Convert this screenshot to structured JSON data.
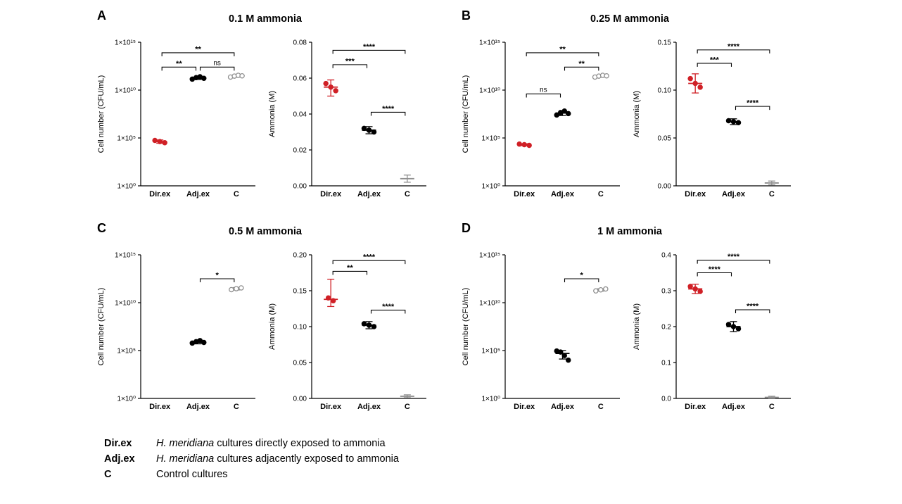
{
  "chart_data": [
    {
      "label": "A",
      "title": "0.1 M ammonia",
      "plots": [
        {
          "type": "scatter",
          "scale": "log10",
          "ylabel": "Cell number (CFU/mL)",
          "ylim_exp": [
            0,
            15
          ],
          "yticks_exp": [
            0,
            5,
            10,
            15
          ],
          "ytick_labels": [
            "1×10⁰",
            "1×10⁵",
            "1×10¹⁰",
            "1×10¹⁵"
          ],
          "categories": [
            "Dir.ex",
            "Adj.ex",
            "C"
          ],
          "groups": [
            {
              "name": "Dir.ex",
              "color": "#d02026",
              "open": false,
              "points": [
                55000.0,
                42000.0,
                32000.0
              ],
              "mean": 42000.0,
              "err_lo": 28000.0,
              "err_hi": 62000.0
            },
            {
              "name": "Adj.ex",
              "color": "#000000",
              "open": false,
              "points": [
                140000000000.0,
                200000000000.0,
                250000000000.0,
                170000000000.0
              ],
              "mean": 190000000000.0,
              "err_lo": 130000000000.0,
              "err_hi": 270000000000.0
            },
            {
              "name": "C",
              "color": "#8f8f8f",
              "open": true,
              "points": [
                230000000000.0,
                290000000000.0,
                350000000000.0,
                310000000000.0
              ],
              "mean": 300000000000.0,
              "err_lo": 220000000000.0,
              "err_hi": 390000000000.0
            }
          ],
          "brackets": [
            {
              "from": 0,
              "to": 2,
              "label": "**",
              "y": 13.9
            },
            {
              "from": 0,
              "to": 1,
              "label": "**",
              "y": 12.4
            },
            {
              "from": 1,
              "to": 2,
              "label": "ns",
              "y": 12.4
            }
          ]
        },
        {
          "type": "scatter",
          "scale": "linear",
          "ylabel": "Ammonia (M)",
          "ylim": [
            0,
            0.08
          ],
          "yticks": [
            0,
            0.02,
            0.04,
            0.06,
            0.08
          ],
          "ytick_labels": [
            "0.00",
            "0.02",
            "0.04",
            "0.06",
            "0.08"
          ],
          "categories": [
            "Dir.ex",
            "Adj.ex",
            "C"
          ],
          "groups": [
            {
              "name": "Dir.ex",
              "color": "#d02026",
              "open": false,
              "points": [
                0.057,
                0.055,
                0.053
              ],
              "mean": 0.055,
              "err_lo": 0.05,
              "err_hi": 0.059
            },
            {
              "name": "Adj.ex",
              "color": "#000000",
              "open": false,
              "points": [
                0.032,
                0.031,
                0.03
              ],
              "mean": 0.031,
              "err_lo": 0.029,
              "err_hi": 0.033
            },
            {
              "name": "C",
              "color": "#8f8f8f",
              "open": true,
              "points": [],
              "mean": 0.004,
              "err_lo": 0.002,
              "err_hi": 0.006
            }
          ],
          "brackets": [
            {
              "from": 0,
              "to": 2,
              "label": "****",
              "y": 0.0755
            },
            {
              "from": 0,
              "to": 1,
              "label": "***",
              "y": 0.0675
            },
            {
              "from": 1,
              "to": 2,
              "label": "****",
              "y": 0.041
            }
          ]
        }
      ]
    },
    {
      "label": "B",
      "title": "0.25 M ammonia",
      "plots": [
        {
          "type": "scatter",
          "scale": "log10",
          "ylabel": "Cell number (CFU/mL)",
          "ylim_exp": [
            0,
            15
          ],
          "yticks_exp": [
            0,
            5,
            10,
            15
          ],
          "ytick_labels": [
            "1×10⁰",
            "1×10⁵",
            "1×10¹⁰",
            "1×10¹⁵"
          ],
          "categories": [
            "Dir.ex",
            "Adj.ex",
            "C"
          ],
          "groups": [
            {
              "name": "Dir.ex",
              "color": "#d02026",
              "open": false,
              "points": [
                23000.0,
                20000.0,
                17000.0
              ],
              "mean": 20000.0,
              "err_lo": 16000.0,
              "err_hi": 25000.0
            },
            {
              "name": "Adj.ex",
              "color": "#000000",
              "open": false,
              "points": [
                25000000.0,
                45000000.0,
                65000000.0,
                35000000.0
              ],
              "mean": 40000000.0,
              "err_lo": 22000000.0,
              "err_hi": 70000000.0
            },
            {
              "name": "C",
              "color": "#8f8f8f",
              "open": true,
              "points": [
                230000000000.0,
                290000000000.0,
                350000000000.0,
                310000000000.0
              ],
              "mean": 300000000000.0,
              "err_lo": 220000000000.0,
              "err_hi": 390000000000.0
            }
          ],
          "brackets": [
            {
              "from": 0,
              "to": 2,
              "label": "**",
              "y": 13.9
            },
            {
              "from": 1,
              "to": 2,
              "label": "**",
              "y": 12.4
            },
            {
              "from": 0,
              "to": 1,
              "label": "ns",
              "y": 9.6
            }
          ]
        },
        {
          "type": "scatter",
          "scale": "linear",
          "ylabel": "Ammonia (M)",
          "ylim": [
            0,
            0.15
          ],
          "yticks": [
            0,
            0.05,
            0.1,
            0.15
          ],
          "ytick_labels": [
            "0.00",
            "0.05",
            "0.10",
            "0.15"
          ],
          "categories": [
            "Dir.ex",
            "Adj.ex",
            "C"
          ],
          "groups": [
            {
              "name": "Dir.ex",
              "color": "#d02026",
              "open": false,
              "points": [
                0.112,
                0.107,
                0.103
              ],
              "mean": 0.107,
              "err_lo": 0.097,
              "err_hi": 0.117
            },
            {
              "name": "Adj.ex",
              "color": "#000000",
              "open": false,
              "points": [
                0.068,
                0.067,
                0.066
              ],
              "mean": 0.067,
              "err_lo": 0.064,
              "err_hi": 0.07
            },
            {
              "name": "C",
              "color": "#8f8f8f",
              "open": true,
              "points": [],
              "mean": 0.003,
              "err_lo": 0.001,
              "err_hi": 0.005
            }
          ],
          "brackets": [
            {
              "from": 0,
              "to": 2,
              "label": "****",
              "y": 0.142
            },
            {
              "from": 0,
              "to": 1,
              "label": "***",
              "y": 0.128
            },
            {
              "from": 1,
              "to": 2,
              "label": "****",
              "y": 0.083
            }
          ]
        }
      ]
    },
    {
      "label": "C",
      "title": "0.5 M ammonia",
      "plots": [
        {
          "type": "scatter",
          "scale": "log10",
          "ylabel": "Cell number (CFU/mL)",
          "ylim_exp": [
            0,
            15
          ],
          "yticks_exp": [
            0,
            5,
            10,
            15
          ],
          "ytick_labels": [
            "1×10⁰",
            "1×10⁵",
            "1×10¹⁰",
            "1×10¹⁵"
          ],
          "categories": [
            "Dir.ex",
            "Adj.ex",
            "C"
          ],
          "groups": [
            {
              "name": "Dir.ex",
              "color": "#d02026",
              "open": false,
              "points": [],
              "mean": null,
              "err_lo": null,
              "err_hi": null
            },
            {
              "name": "Adj.ex",
              "color": "#000000",
              "open": false,
              "points": [
                600000.0,
                850000.0,
                1100000.0,
                700000.0
              ],
              "mean": 800000.0,
              "err_lo": 500000.0,
              "err_hi": 1300000.0
            },
            {
              "name": "C",
              "color": "#8f8f8f",
              "open": true,
              "points": [
                230000000000.0,
                290000000000.0,
                350000000000.0
              ],
              "mean": 290000000000.0,
              "err_lo": 210000000000.0,
              "err_hi": 380000000000.0
            }
          ],
          "brackets": [
            {
              "from": 1,
              "to": 2,
              "label": "*",
              "y": 12.5
            }
          ]
        },
        {
          "type": "scatter",
          "scale": "linear",
          "ylabel": "Ammonia (M)",
          "ylim": [
            0,
            0.2
          ],
          "yticks": [
            0,
            0.05,
            0.1,
            0.15,
            0.2
          ],
          "ytick_labels": [
            "0.00",
            "0.05",
            "0.10",
            "0.15",
            "0.20"
          ],
          "categories": [
            "Dir.ex",
            "Adj.ex",
            "C"
          ],
          "groups": [
            {
              "name": "Dir.ex",
              "color": "#d02026",
              "open": false,
              "points": [
                0.14,
                0.136
              ],
              "mean": 0.138,
              "err_lo": 0.128,
              "err_hi": 0.166
            },
            {
              "name": "Adj.ex",
              "color": "#000000",
              "open": false,
              "points": [
                0.104,
                0.102,
                0.1
              ],
              "mean": 0.102,
              "err_lo": 0.097,
              "err_hi": 0.107
            },
            {
              "name": "C",
              "color": "#8f8f8f",
              "open": true,
              "points": [],
              "mean": 0.003,
              "err_lo": 0.001,
              "err_hi": 0.005
            }
          ],
          "brackets": [
            {
              "from": 0,
              "to": 2,
              "label": "****",
              "y": 0.192
            },
            {
              "from": 0,
              "to": 1,
              "label": "**",
              "y": 0.177
            },
            {
              "from": 1,
              "to": 2,
              "label": "****",
              "y": 0.123
            }
          ]
        }
      ]
    },
    {
      "label": "D",
      "title": "1 M ammonia",
      "plots": [
        {
          "type": "scatter",
          "scale": "log10",
          "ylabel": "Cell number (CFU/mL)",
          "ylim_exp": [
            0,
            15
          ],
          "yticks_exp": [
            0,
            5,
            10,
            15
          ],
          "ytick_labels": [
            "1×10⁰",
            "1×10⁵",
            "1×10¹⁰",
            "1×10¹⁵"
          ],
          "categories": [
            "Dir.ex",
            "Adj.ex",
            "C"
          ],
          "groups": [
            {
              "name": "Dir.ex",
              "color": "#d02026",
              "open": false,
              "points": [],
              "mean": null,
              "err_lo": null,
              "err_hi": null
            },
            {
              "name": "Adj.ex",
              "color": "#000000",
              "open": false,
              "points": [
                90000.0,
                70000.0,
                30000.0,
                10000.0
              ],
              "mean": 50000.0,
              "err_lo": 13000.0,
              "err_hi": 100000.0
            },
            {
              "name": "C",
              "color": "#8f8f8f",
              "open": true,
              "points": [
                170000000000.0,
                220000000000.0,
                270000000000.0
              ],
              "mean": 220000000000.0,
              "err_lo": 160000000000.0,
              "err_hi": 290000000000.0
            }
          ],
          "brackets": [
            {
              "from": 1,
              "to": 2,
              "label": "*",
              "y": 12.5
            }
          ]
        },
        {
          "type": "scatter",
          "scale": "linear",
          "ylabel": "Ammonia (M)",
          "ylim": [
            0,
            0.4
          ],
          "yticks": [
            0,
            0.1,
            0.2,
            0.3,
            0.4
          ],
          "ytick_labels": [
            "0.0",
            "0.1",
            "0.2",
            "0.3",
            "0.4"
          ],
          "categories": [
            "Dir.ex",
            "Adj.ex",
            "C"
          ],
          "groups": [
            {
              "name": "Dir.ex",
              "color": "#d02026",
              "open": false,
              "points": [
                0.312,
                0.305,
                0.298
              ],
              "mean": 0.305,
              "err_lo": 0.292,
              "err_hi": 0.318
            },
            {
              "name": "Adj.ex",
              "color": "#000000",
              "open": false,
              "points": [
                0.206,
                0.2,
                0.194
              ],
              "mean": 0.2,
              "err_lo": 0.186,
              "err_hi": 0.214
            },
            {
              "name": "C",
              "color": "#8f8f8f",
              "open": true,
              "points": [],
              "mean": 0.003,
              "err_lo": 0.001,
              "err_hi": 0.006
            }
          ],
          "brackets": [
            {
              "from": 0,
              "to": 2,
              "label": "****",
              "y": 0.385
            },
            {
              "from": 0,
              "to": 1,
              "label": "****",
              "y": 0.35
            },
            {
              "from": 1,
              "to": 2,
              "label": "****",
              "y": 0.247
            }
          ]
        }
      ]
    }
  ],
  "figure": {
    "legend": [
      {
        "term": "Dir.ex",
        "italic": "H. meridiana",
        "text": " cultures directly exposed to ammonia"
      },
      {
        "term": "Adj.ex",
        "italic": "H. meridiana",
        "text": " cultures adjacently exposed to ammonia"
      },
      {
        "term": "C",
        "italic": "",
        "text": "Control cultures"
      }
    ]
  }
}
